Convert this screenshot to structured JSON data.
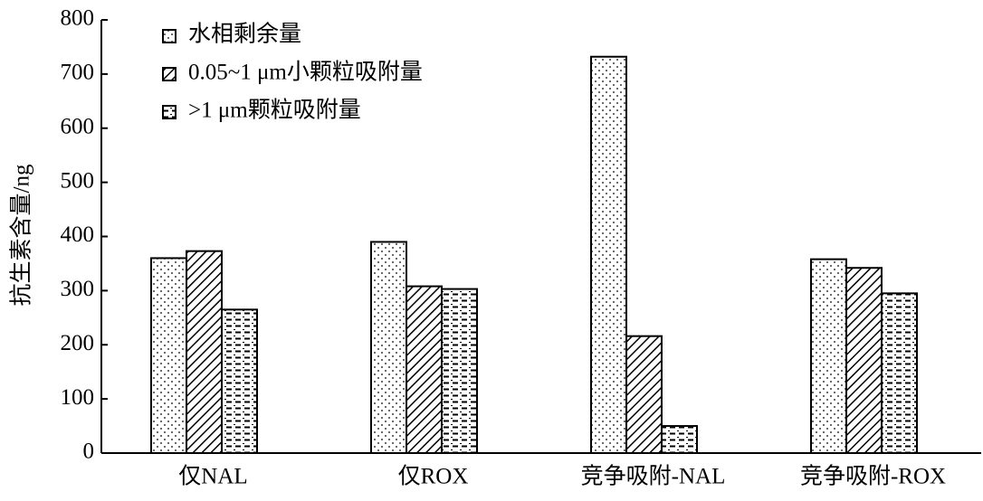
{
  "chart_data": {
    "type": "bar",
    "y_label": "抗生素含量/ng",
    "categories": [
      "仅NAL",
      "仅ROX",
      "竞争吸附-NAL",
      "竞争吸附-ROX"
    ],
    "series": [
      {
        "name": "水相剩余量",
        "color": "#000000",
        "pattern": "dots",
        "values": [
          360,
          390,
          732,
          358
        ]
      },
      {
        "name": "0.05~1 μm小颗粒吸附量",
        "color": "#000000",
        "pattern": "diagonal",
        "values": [
          373,
          308,
          216,
          342
        ]
      },
      {
        "name": ">1 μm颗粒吸附量",
        "color": "#000000",
        "pattern": "dashes",
        "values": [
          265,
          303,
          50,
          295
        ]
      }
    ],
    "ylim": [
      0,
      800
    ],
    "yticks": [
      0,
      100,
      200,
      300,
      400,
      500,
      600,
      700,
      800
    ],
    "legend": "upper-left",
    "grid": false
  }
}
